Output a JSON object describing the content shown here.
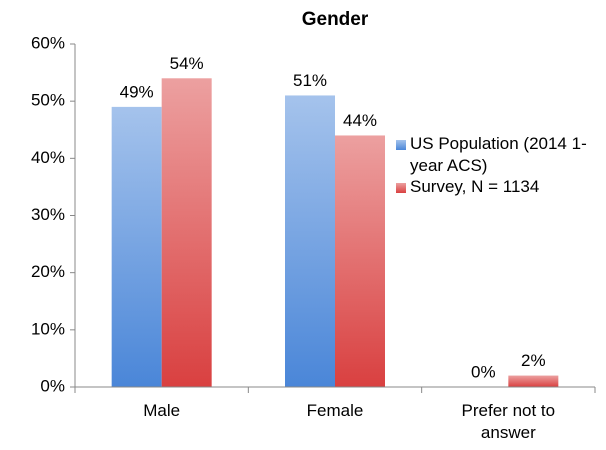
{
  "chart_data": {
    "type": "bar",
    "title": "Gender",
    "categories": [
      "Male",
      "Female",
      "Prefer not to answer"
    ],
    "series": [
      {
        "name": "US Population (2014 1-year ACS)",
        "color": "#4a86d8",
        "values": [
          49,
          51,
          0
        ],
        "value_labels": [
          "49%",
          "51%",
          "0%"
        ]
      },
      {
        "name": "Survey, N = 1134",
        "color": "#d94040",
        "values": [
          54,
          44,
          2
        ],
        "value_labels": [
          "54%",
          "44%",
          "2%"
        ]
      }
    ],
    "ylim": [
      0,
      60
    ],
    "yticks": [
      {
        "value": 0,
        "label": "0%"
      },
      {
        "value": 10,
        "label": "10%"
      },
      {
        "value": 20,
        "label": "20%"
      },
      {
        "value": 30,
        "label": "30%"
      },
      {
        "value": 40,
        "label": "40%"
      },
      {
        "value": 50,
        "label": "50%"
      },
      {
        "value": 60,
        "label": "60%"
      }
    ],
    "grid": false,
    "legend": "right"
  }
}
